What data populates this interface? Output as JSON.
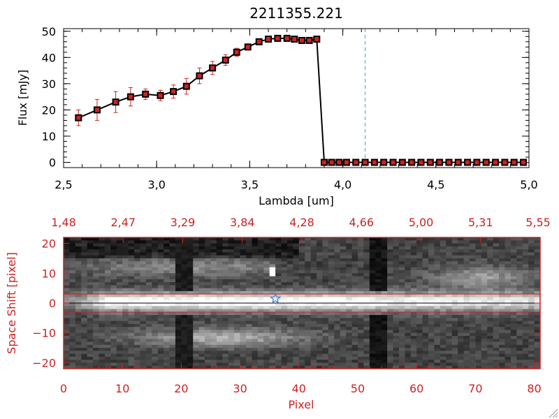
{
  "chart_data": [
    {
      "type": "line",
      "title": "2211355.221",
      "xlabel": "Lambda [um]",
      "ylabel": "Flux [mJy]",
      "xlim": [
        2.5,
        5.0
      ],
      "ylim": [
        -2,
        51
      ],
      "xticks": [
        "2.5",
        "3.0",
        "3.5",
        "4.0",
        "4.5",
        "5.0"
      ],
      "yticks": [
        "0",
        "10",
        "20",
        "30",
        "40",
        "50"
      ],
      "marker": "square",
      "line_color": "#000000",
      "marker_color": "#cc2222",
      "errorbar_color": "#cc2222",
      "vline": {
        "x": 4.12,
        "style": "dashed",
        "color": "#3aa7c4"
      },
      "series": [
        {
          "x": [
            2.58,
            2.68,
            2.78,
            2.86,
            2.94,
            3.02,
            3.09,
            3.16,
            3.23,
            3.3,
            3.37,
            3.43,
            3.49,
            3.55,
            3.6,
            3.65,
            3.7,
            3.74,
            3.78,
            3.82,
            3.86,
            3.9,
            3.94,
            3.98,
            4.02,
            4.07,
            4.12,
            4.17,
            4.22,
            4.27,
            4.32,
            4.37,
            4.42,
            4.47,
            4.52,
            4.57,
            4.62,
            4.67,
            4.72,
            4.77,
            4.82,
            4.87,
            4.92,
            4.97
          ],
          "y": [
            17,
            20,
            23,
            25,
            26,
            25.5,
            27,
            29,
            33,
            36,
            39,
            42,
            44,
            46,
            47,
            47.3,
            47.3,
            47,
            46.5,
            46.5,
            47,
            0,
            0,
            0,
            0,
            0,
            0,
            0,
            0,
            0,
            0,
            0,
            0,
            0,
            0,
            0,
            0,
            0,
            0,
            0,
            0,
            0,
            0,
            0
          ],
          "err": [
            3,
            4,
            4,
            3.5,
            2,
            2,
            2.5,
            3,
            3,
            2.5,
            2,
            1.5,
            1,
            1,
            0.8,
            0.8,
            0.8,
            0.8,
            0.8,
            0.8,
            0.8,
            0,
            0,
            0,
            0,
            0,
            0,
            0,
            0,
            0,
            0,
            0,
            0,
            0,
            0,
            0,
            0,
            0,
            0,
            0,
            0,
            0,
            0,
            0
          ]
        }
      ]
    },
    {
      "type": "heatmap",
      "colormap": "grayscale",
      "axis_color": "#cc2222",
      "xlabel": "Pixel",
      "ylabel": "Space Shift [pixel]",
      "xlim": [
        0,
        81
      ],
      "ylim": [
        -22,
        22
      ],
      "xticks": [
        "0",
        "10",
        "20",
        "30",
        "40",
        "50",
        "60",
        "70",
        "80"
      ],
      "yticks": [
        "-20",
        "-10",
        "0",
        "10",
        "20"
      ],
      "top_ticks": [
        "1.48",
        "2.47",
        "3.29",
        "3.84",
        "4.28",
        "4.66",
        "5.00",
        "5.31",
        "5.55"
      ],
      "aperture_lines_y": [
        3,
        -3
      ],
      "center_line_y": 0,
      "star_marker": {
        "x": 36,
        "y": 1.5,
        "color": "#3a7fd0"
      }
    }
  ]
}
